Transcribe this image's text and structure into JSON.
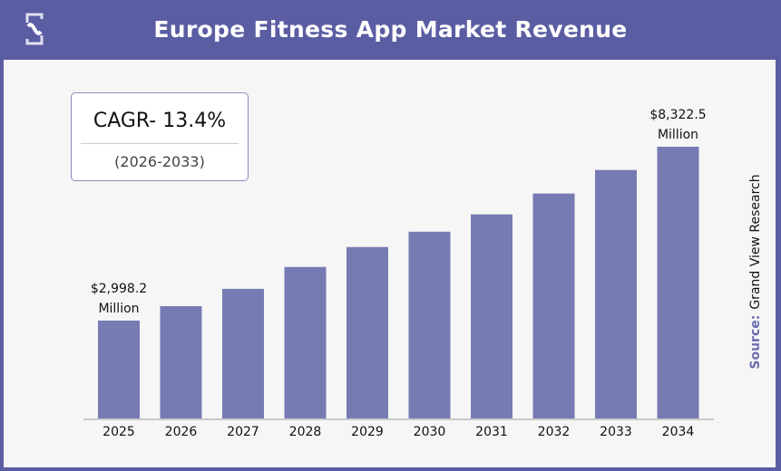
{
  "header": {
    "title": "Europe Fitness App Market Revenue"
  },
  "cagr": {
    "value": "CAGR- 13.4%",
    "period": "(2026-2033)"
  },
  "source": {
    "label": "Source:",
    "name": "Grand View Research"
  },
  "colors": {
    "header": "#5b5da3",
    "bar": "#767bb3"
  },
  "chart_data": {
    "type": "bar",
    "title": "Europe Fitness App Market Revenue",
    "categories": [
      "2025",
      "2026",
      "2027",
      "2028",
      "2029",
      "2030",
      "2031",
      "2032",
      "2033",
      "2034"
    ],
    "values": [
      2998.2,
      3440,
      3970,
      4640,
      5250,
      5720,
      6250,
      6890,
      7610,
      8322.5
    ],
    "unit": "USD Million",
    "data_labels": [
      {
        "category": "2025",
        "line1": "$2,998.2",
        "line2": "Million"
      },
      {
        "category": "2034",
        "line1": "$8,322.5",
        "line2": "Million"
      }
    ],
    "grid": false,
    "ylim": [
      0,
      8322.5
    ]
  }
}
